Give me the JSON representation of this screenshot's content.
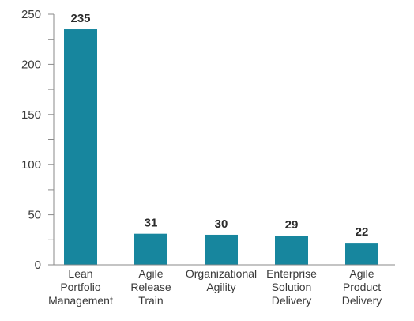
{
  "chart_data": {
    "type": "bar",
    "categories": [
      [
        "Lean",
        "Portfolio",
        "Management"
      ],
      [
        "Agile",
        "Release",
        "Train"
      ],
      [
        "Organizational",
        "Agility"
      ],
      [
        "Enterprise",
        "Solution",
        "Delivery"
      ],
      [
        "Agile",
        "Product",
        "Delivery"
      ]
    ],
    "values": [
      235,
      31,
      30,
      29,
      22
    ],
    "data_labels": [
      "235",
      "31",
      "30",
      "29",
      "22"
    ],
    "yticks": [
      0,
      50,
      100,
      150,
      200,
      250
    ],
    "ylim": [
      0,
      250
    ],
    "minor_ticks": true,
    "grid": false,
    "legend": "none",
    "bar_color": "#17869e",
    "axis_color": "#8a8a8a"
  }
}
